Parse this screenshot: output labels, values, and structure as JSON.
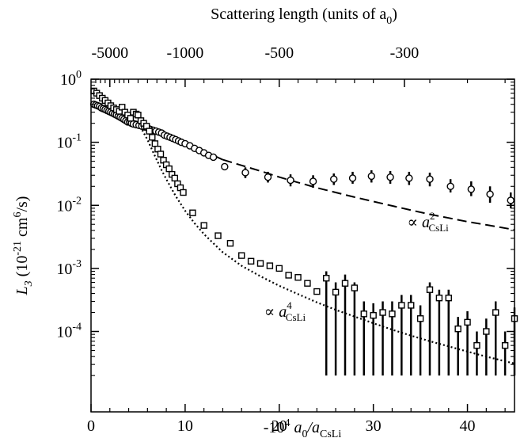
{
  "chart_data": {
    "type": "scatter",
    "x_scale": "linear",
    "y_scale": "log",
    "xlim": [
      0,
      45
    ],
    "ylim": [
      2e-05,
      1
    ],
    "xlabel": "-10",
    "xlabel_parts": {
      "pre": "-10",
      "sup": "4",
      "mid": " a",
      "sub1": "0",
      "slash": "/a",
      "sub2": "CsLi"
    },
    "ylabel_parts": {
      "italic": "L",
      "sub": "3",
      "unit_pre": " (10",
      "unit_sup1": "-21",
      "unit_mid": " cm",
      "unit_sup2": "6",
      "unit_post": "/s)"
    },
    "top_axis_title_parts": {
      "pre": "Scattering length (units of a",
      "sub": "0",
      "post": ")"
    },
    "x_ticks": [
      0,
      10,
      20,
      30,
      40
    ],
    "x_tick_labels": [
      "0",
      "10",
      "20",
      "30",
      "40"
    ],
    "y_ticks": [
      {
        "value": 1,
        "base": "10",
        "exp": "0"
      },
      {
        "value": 0.1,
        "base": "10",
        "exp": "-1"
      },
      {
        "value": 0.01,
        "base": "10",
        "exp": "-2"
      },
      {
        "value": 0.001,
        "base": "10",
        "exp": "-3"
      },
      {
        "value": 0.0001,
        "base": "10",
        "exp": "-4"
      }
    ],
    "top_ticks": [
      {
        "label": "-5000",
        "x": 2
      },
      {
        "label": "-1000",
        "x": 10
      },
      {
        "label": "-500",
        "x": 20
      },
      {
        "label": "-300",
        "x": 33.3
      }
    ],
    "annotations": [
      {
        "id": "a2",
        "pre": "∝ a",
        "sup": "2",
        "sub": "CsLi",
        "x": 35.8,
        "y": 0.0045
      },
      {
        "id": "a4",
        "pre": "∝ a",
        "sup": "4",
        "sub": "CsLi",
        "x": 20.6,
        "y": 0.00017
      }
    ],
    "series": [
      {
        "marker": "circle",
        "points": [
          [
            0.3,
            0.4
          ],
          [
            0.5,
            0.39
          ],
          [
            0.7,
            0.38
          ],
          [
            0.9,
            0.37
          ],
          [
            1.1,
            0.35
          ],
          [
            1.3,
            0.34
          ],
          [
            1.5,
            0.33
          ],
          [
            1.7,
            0.32
          ],
          [
            1.9,
            0.31
          ],
          [
            2.1,
            0.3
          ],
          [
            2.3,
            0.29
          ],
          [
            2.5,
            0.28
          ],
          [
            2.7,
            0.27
          ],
          [
            2.9,
            0.26
          ],
          [
            3.1,
            0.25
          ],
          [
            3.3,
            0.24
          ],
          [
            3.5,
            0.23
          ],
          [
            3.7,
            0.22
          ],
          [
            3.9,
            0.21
          ],
          [
            4.1,
            0.21
          ],
          [
            4.3,
            0.2
          ],
          [
            4.5,
            0.195
          ],
          [
            4.8,
            0.19
          ],
          [
            5.1,
            0.185
          ],
          [
            5.4,
            0.18
          ],
          [
            5.7,
            0.175
          ],
          [
            6.0,
            0.17
          ],
          [
            6.3,
            0.16
          ],
          [
            6.6,
            0.155
          ],
          [
            6.9,
            0.15
          ],
          [
            7.2,
            0.145
          ],
          [
            7.5,
            0.14
          ],
          [
            7.8,
            0.13
          ],
          [
            8.1,
            0.125
          ],
          [
            8.4,
            0.12
          ],
          [
            8.7,
            0.115
          ],
          [
            9.0,
            0.11
          ],
          [
            9.3,
            0.105
          ],
          [
            9.6,
            0.1
          ],
          [
            10.0,
            0.095
          ],
          [
            10.5,
            0.088
          ],
          [
            11.0,
            0.08
          ],
          [
            11.5,
            0.074
          ],
          [
            12.0,
            0.068
          ],
          [
            12.5,
            0.062
          ],
          [
            13.0,
            0.058
          ],
          [
            14.2,
            0.041
          ],
          [
            16.4,
            0.033
          ],
          [
            18.8,
            0.028
          ],
          [
            21.2,
            0.025
          ],
          [
            23.6,
            0.024
          ],
          [
            25.8,
            0.026
          ],
          [
            27.8,
            0.027
          ],
          [
            29.8,
            0.029
          ],
          [
            31.8,
            0.028
          ],
          [
            33.8,
            0.027
          ],
          [
            36.0,
            0.026
          ],
          [
            38.2,
            0.02
          ],
          [
            40.4,
            0.018
          ],
          [
            42.4,
            0.015
          ],
          [
            44.6,
            0.012
          ]
        ]
      },
      {
        "marker": "square",
        "points": [
          [
            0.3,
            0.65
          ],
          [
            0.6,
            0.6
          ],
          [
            0.9,
            0.55
          ],
          [
            1.2,
            0.5
          ],
          [
            1.5,
            0.46
          ],
          [
            1.8,
            0.42
          ],
          [
            2.1,
            0.38
          ],
          [
            2.4,
            0.35
          ],
          [
            2.7,
            0.33
          ],
          [
            3.0,
            0.31
          ],
          [
            3.3,
            0.36
          ],
          [
            3.6,
            0.3
          ],
          [
            3.9,
            0.27
          ],
          [
            4.2,
            0.24
          ],
          [
            4.5,
            0.3
          ],
          [
            4.8,
            0.28
          ],
          [
            5.0,
            0.27
          ],
          [
            5.3,
            0.22
          ],
          [
            5.6,
            0.2
          ],
          [
            5.9,
            0.18
          ],
          [
            6.2,
            0.15
          ],
          [
            6.5,
            0.12
          ],
          [
            6.8,
            0.095
          ],
          [
            7.1,
            0.078
          ],
          [
            7.4,
            0.065
          ],
          [
            7.7,
            0.052
          ],
          [
            8.0,
            0.044
          ],
          [
            8.3,
            0.038
          ],
          [
            8.6,
            0.031
          ],
          [
            8.9,
            0.027
          ],
          [
            9.2,
            0.022
          ],
          [
            9.5,
            0.019
          ],
          [
            9.8,
            0.016
          ],
          [
            10.8,
            0.0076
          ],
          [
            12.0,
            0.0048
          ],
          [
            13.5,
            0.0033
          ],
          [
            14.8,
            0.0025
          ],
          [
            16.0,
            0.0016
          ],
          [
            17.0,
            0.0013
          ],
          [
            18.0,
            0.0012
          ],
          [
            19.0,
            0.0011
          ],
          [
            20.0,
            0.001
          ],
          [
            21.0,
            0.00078
          ],
          [
            22.0,
            0.00072
          ],
          [
            23.0,
            0.00058
          ],
          [
            24.0,
            0.00043
          ],
          [
            25.0,
            0.0007
          ],
          [
            26.0,
            0.00042
          ],
          [
            27.0,
            0.00058
          ],
          [
            28.0,
            0.00049
          ],
          [
            29.0,
            0.00019
          ],
          [
            30.0,
            0.00018
          ],
          [
            31.0,
            0.0002
          ],
          [
            32.0,
            0.00019
          ],
          [
            33.0,
            0.00026
          ],
          [
            34.0,
            0.00026
          ],
          [
            35.0,
            0.00016
          ],
          [
            36.0,
            0.00046
          ],
          [
            37.0,
            0.00034
          ],
          [
            38.0,
            0.00034
          ],
          [
            39.0,
            0.00011
          ],
          [
            40.0,
            0.00014
          ],
          [
            41.0,
            6e-05
          ],
          [
            42.0,
            0.0001
          ],
          [
            43.0,
            0.0002
          ],
          [
            44.0,
            6e-05
          ],
          [
            45.0,
            0.00016
          ]
        ]
      }
    ],
    "error_bars": [
      {
        "x": 25.0,
        "low": 2e-05,
        "high": 0.0009
      },
      {
        "x": 26.0,
        "low": 2e-05,
        "high": 0.0006
      },
      {
        "x": 27.0,
        "low": 2e-05,
        "high": 0.0008
      },
      {
        "x": 28.0,
        "low": 2e-05,
        "high": 0.0006
      },
      {
        "x": 29.0,
        "low": 2e-05,
        "high": 0.0003
      },
      {
        "x": 30.0,
        "low": 2e-05,
        "high": 0.00028
      },
      {
        "x": 31.0,
        "low": 2e-05,
        "high": 0.0003
      },
      {
        "x": 32.0,
        "low": 2e-05,
        "high": 0.0003
      },
      {
        "x": 33.0,
        "low": 2e-05,
        "high": 0.00038
      },
      {
        "x": 34.0,
        "low": 2e-05,
        "high": 0.00038
      },
      {
        "x": 35.0,
        "low": 2e-05,
        "high": 0.00026
      },
      {
        "x": 36.0,
        "low": 2e-05,
        "high": 0.0006
      },
      {
        "x": 37.0,
        "low": 2e-05,
        "high": 0.00046
      },
      {
        "x": 38.0,
        "low": 2e-05,
        "high": 0.00046
      },
      {
        "x": 39.0,
        "low": 2e-05,
        "high": 0.00017
      },
      {
        "x": 40.0,
        "low": 2e-05,
        "high": 0.00021
      },
      {
        "x": 41.0,
        "low": 2e-05,
        "high": 0.0001
      },
      {
        "x": 42.0,
        "low": 2e-05,
        "high": 0.00016
      },
      {
        "x": 43.0,
        "low": 2e-05,
        "high": 0.0003
      },
      {
        "x": 44.0,
        "low": 2e-05,
        "high": 0.0001
      },
      {
        "x": 45.0,
        "low": 2e-05,
        "high": 0.00024
      },
      {
        "x": 16.4,
        "low": 0.027,
        "high": 0.04
      },
      {
        "x": 18.8,
        "low": 0.023,
        "high": 0.034
      },
      {
        "x": 21.2,
        "low": 0.02,
        "high": 0.031
      },
      {
        "x": 23.6,
        "low": 0.019,
        "high": 0.03
      },
      {
        "x": 25.8,
        "low": 0.021,
        "high": 0.032
      },
      {
        "x": 27.8,
        "low": 0.022,
        "high": 0.034
      },
      {
        "x": 29.8,
        "low": 0.023,
        "high": 0.036
      },
      {
        "x": 31.8,
        "low": 0.022,
        "high": 0.035
      },
      {
        "x": 33.8,
        "low": 0.021,
        "high": 0.034
      },
      {
        "x": 36.0,
        "low": 0.02,
        "high": 0.033
      },
      {
        "x": 38.2,
        "low": 0.016,
        "high": 0.026
      },
      {
        "x": 40.4,
        "low": 0.014,
        "high": 0.024
      },
      {
        "x": 42.4,
        "low": 0.011,
        "high": 0.02
      },
      {
        "x": 44.6,
        "low": 0.009,
        "high": 0.016
      }
    ],
    "fit_curves": [
      {
        "style": "solid",
        "points": [
          [
            0.1,
            0.4
          ],
          [
            1,
            0.37
          ],
          [
            2,
            0.32
          ],
          [
            3,
            0.27
          ],
          [
            4,
            0.23
          ],
          [
            5,
            0.21
          ],
          [
            6,
            0.18
          ],
          [
            7,
            0.15
          ],
          [
            8,
            0.13
          ],
          [
            9,
            0.115
          ],
          [
            10,
            0.098
          ],
          [
            11,
            0.085
          ],
          [
            12,
            0.072
          ],
          [
            13,
            0.062
          ],
          [
            14,
            0.053
          ]
        ]
      },
      {
        "style": "dashed",
        "points": [
          [
            14,
            0.053
          ],
          [
            16,
            0.043
          ],
          [
            18,
            0.035
          ],
          [
            20,
            0.028
          ],
          [
            22,
            0.023
          ],
          [
            24,
            0.019
          ],
          [
            26,
            0.016
          ],
          [
            28,
            0.0135
          ],
          [
            30,
            0.0115
          ],
          [
            32,
            0.0098
          ],
          [
            34,
            0.0084
          ],
          [
            36,
            0.0072
          ],
          [
            38,
            0.0063
          ],
          [
            40,
            0.0055
          ],
          [
            42,
            0.0049
          ],
          [
            45,
            0.0041
          ]
        ]
      },
      {
        "style": "dotted",
        "points": [
          [
            5.0,
            0.2
          ],
          [
            5.5,
            0.15
          ],
          [
            6,
            0.11
          ],
          [
            6.5,
            0.075
          ],
          [
            7,
            0.052
          ],
          [
            7.5,
            0.036
          ],
          [
            8,
            0.026
          ],
          [
            9,
            0.014
          ],
          [
            10,
            0.0082
          ],
          [
            11,
            0.0052
          ],
          [
            12,
            0.0035
          ],
          [
            13,
            0.0025
          ],
          [
            14,
            0.0018
          ],
          [
            16,
            0.0011
          ],
          [
            18,
            0.00075
          ],
          [
            20,
            0.00053
          ],
          [
            22,
            0.00039
          ],
          [
            24,
            0.00029
          ],
          [
            26,
            0.00022
          ],
          [
            28,
            0.000172
          ],
          [
            30,
            0.000135
          ],
          [
            32,
            0.000107
          ],
          [
            34,
            8.6e-05
          ],
          [
            36,
            7e-05
          ],
          [
            38,
            5.8e-05
          ],
          [
            40,
            4.8e-05
          ],
          [
            42,
            4e-05
          ],
          [
            45,
            3.1e-05
          ]
        ]
      }
    ]
  }
}
